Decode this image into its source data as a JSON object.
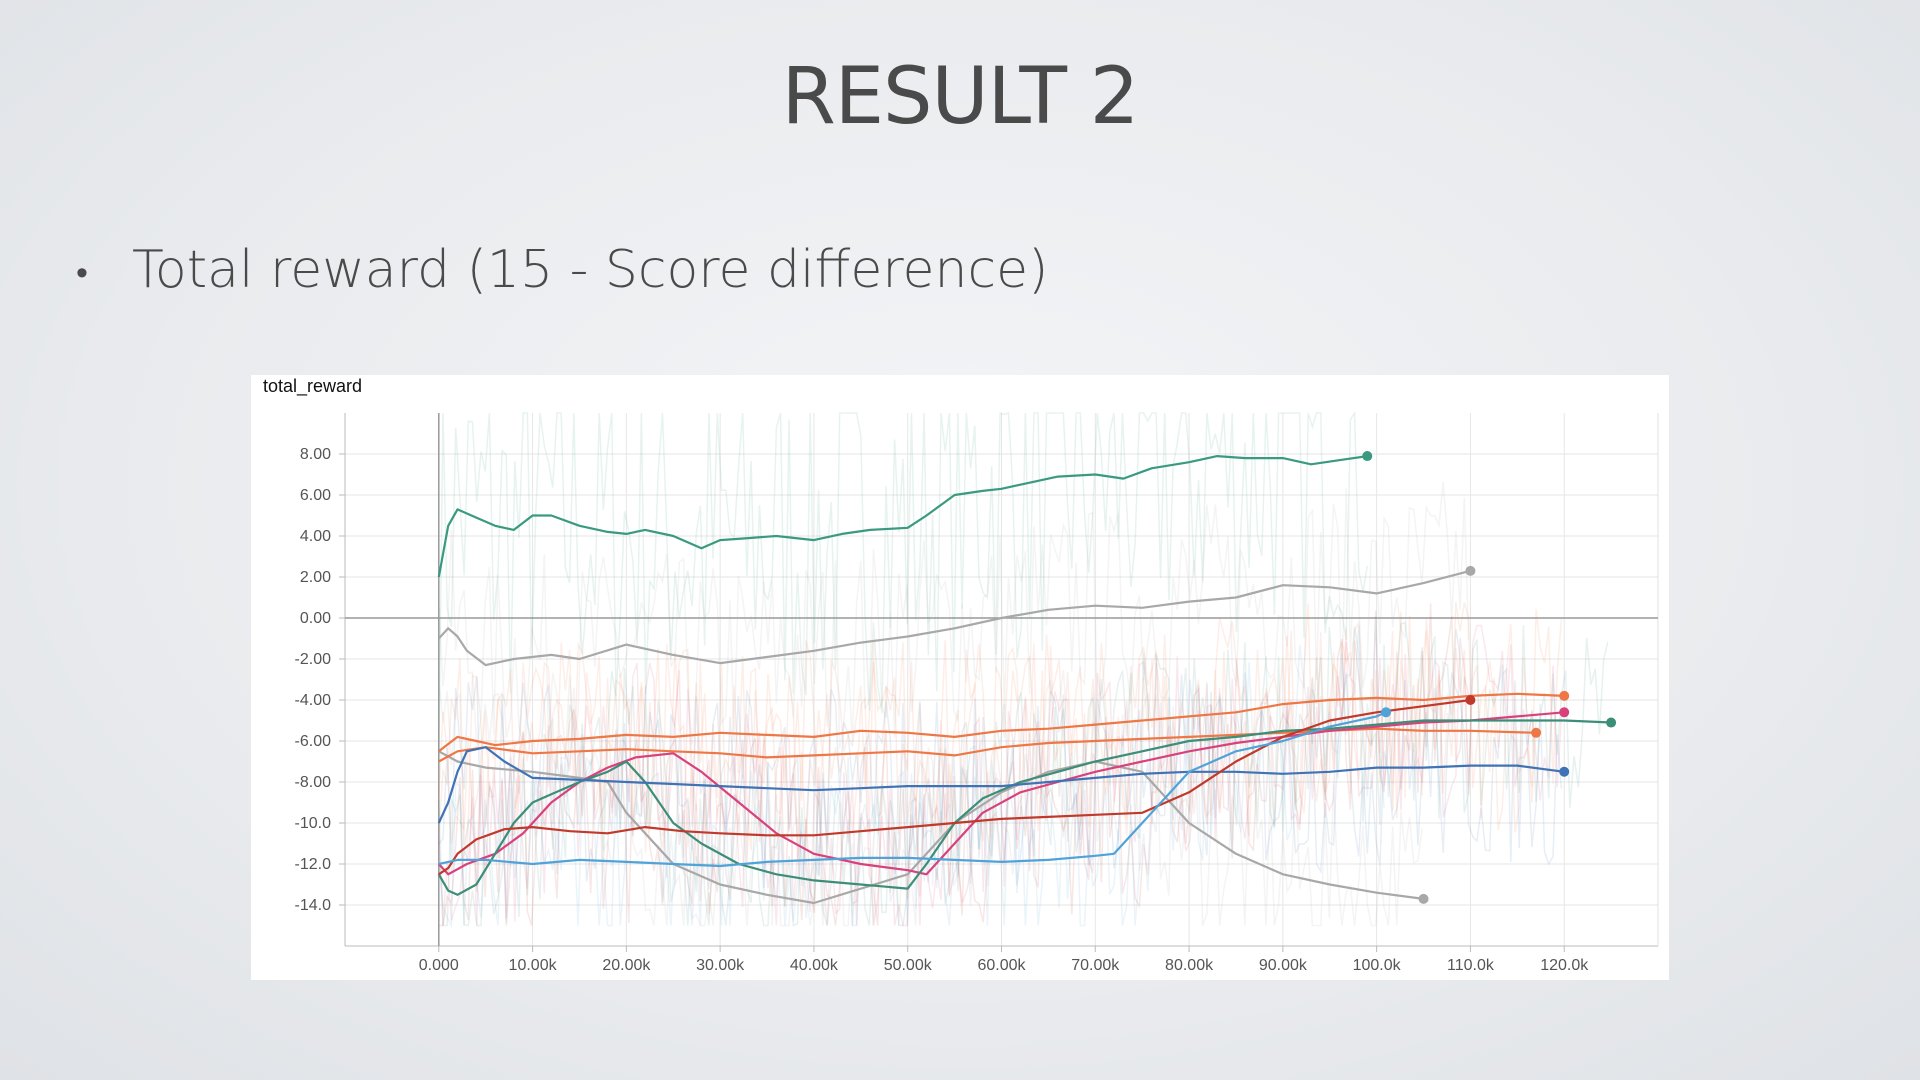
{
  "slide": {
    "title": "RESULT 2",
    "bullet": "Total reward (15 - Score difference)"
  },
  "chart_data": {
    "type": "line",
    "title": "total_reward",
    "xlabel": "",
    "ylabel": "",
    "xlim": [
      -10000,
      130000
    ],
    "ylim": [
      -16,
      10
    ],
    "grid": true,
    "x_ticks": [
      "0.000",
      "10.00k",
      "20.00k",
      "30.00k",
      "40.00k",
      "50.00k",
      "60.00k",
      "70.00k",
      "80.00k",
      "90.00k",
      "100.0k",
      "110.0k",
      "120.0k"
    ],
    "y_ticks": [
      "8.00",
      "6.00",
      "4.00",
      "2.00",
      "0.00",
      "-2.00",
      "-4.00",
      "-6.00",
      "-8.00",
      "-10.0",
      "-12.0",
      "-14.0"
    ],
    "series": [
      {
        "color": "#3a9a7f",
        "x": [
          0,
          1000,
          2000,
          4000,
          6000,
          8000,
          10000,
          12000,
          15000,
          18000,
          20000,
          22000,
          25000,
          28000,
          30000,
          33000,
          36000,
          40000,
          43000,
          46000,
          50000,
          52000,
          55000,
          58000,
          60000,
          63000,
          66000,
          70000,
          73000,
          76000,
          80000,
          83000,
          86000,
          90000,
          93000,
          96000,
          99000
        ],
        "y": [
          2.0,
          4.5,
          5.3,
          4.9,
          4.5,
          4.3,
          5.0,
          5.0,
          4.5,
          4.2,
          4.1,
          4.3,
          4.0,
          3.4,
          3.8,
          3.9,
          4.0,
          3.8,
          4.1,
          4.3,
          4.4,
          5.0,
          6.0,
          6.2,
          6.3,
          6.6,
          6.9,
          7.0,
          6.8,
          7.3,
          7.6,
          7.9,
          7.8,
          7.8,
          7.5,
          7.7,
          7.9
        ]
      },
      {
        "color": "#a8a8a8",
        "x": [
          0,
          1000,
          2000,
          3000,
          5000,
          8000,
          12000,
          15000,
          20000,
          25000,
          30000,
          35000,
          40000,
          45000,
          50000,
          55000,
          60000,
          65000,
          70000,
          75000,
          80000,
          85000,
          90000,
          95000,
          100000,
          105000,
          110000
        ],
        "y": [
          -1.0,
          -0.5,
          -0.9,
          -1.6,
          -2.3,
          -2.0,
          -1.8,
          -2.0,
          -1.3,
          -1.8,
          -2.2,
          -1.9,
          -1.6,
          -1.2,
          -0.9,
          -0.5,
          0.0,
          0.4,
          0.6,
          0.5,
          0.8,
          1.0,
          1.6,
          1.5,
          1.2,
          1.7,
          2.3
        ]
      },
      {
        "color": "#a8a8a8",
        "x": [
          0,
          2000,
          5000,
          10000,
          15000,
          18000,
          20000,
          25000,
          30000,
          35000,
          40000,
          50000,
          55000,
          60000,
          65000,
          70000,
          75000,
          80000,
          85000,
          90000,
          95000,
          100000,
          105000
        ],
        "y": [
          -6.5,
          -7.0,
          -7.3,
          -7.5,
          -7.8,
          -8.0,
          -9.5,
          -12.0,
          -13.0,
          -13.5,
          -13.9,
          -12.5,
          -10.0,
          -8.5,
          -7.5,
          -7.0,
          -7.5,
          -10.0,
          -11.5,
          -12.5,
          -13.0,
          -13.4,
          -13.7
        ]
      },
      {
        "color": "#ee7745",
        "x": [
          0,
          2000,
          4000,
          6000,
          10000,
          15000,
          20000,
          25000,
          30000,
          35000,
          40000,
          45000,
          50000,
          55000,
          60000,
          65000,
          70000,
          75000,
          80000,
          85000,
          90000,
          95000,
          100000,
          105000,
          110000,
          115000,
          120000
        ],
        "y": [
          -6.5,
          -5.8,
          -6.0,
          -6.2,
          -6.0,
          -5.9,
          -5.7,
          -5.8,
          -5.6,
          -5.7,
          -5.8,
          -5.5,
          -5.6,
          -5.8,
          -5.5,
          -5.4,
          -5.2,
          -5.0,
          -4.8,
          -4.6,
          -4.2,
          -4.0,
          -3.9,
          -4.0,
          -3.8,
          -3.7,
          -3.8
        ]
      },
      {
        "color": "#ee7745",
        "x": [
          0,
          2000,
          5000,
          10000,
          15000,
          20000,
          25000,
          30000,
          35000,
          40000,
          45000,
          50000,
          55000,
          60000,
          65000,
          70000,
          75000,
          80000,
          85000,
          90000,
          95000,
          100000,
          105000,
          110000,
          117000
        ],
        "y": [
          -7.0,
          -6.5,
          -6.3,
          -6.6,
          -6.5,
          -6.4,
          -6.5,
          -6.6,
          -6.8,
          -6.7,
          -6.6,
          -6.5,
          -6.7,
          -6.3,
          -6.1,
          -6.0,
          -5.9,
          -5.8,
          -5.7,
          -5.6,
          -5.5,
          -5.4,
          -5.5,
          -5.5,
          -5.6
        ]
      },
      {
        "color": "#d9417d",
        "x": [
          0,
          1000,
          3000,
          6000,
          9000,
          12000,
          15000,
          18000,
          21000,
          25000,
          28000,
          32000,
          36000,
          40000,
          45000,
          50000,
          52000,
          55000,
          58000,
          62000,
          66000,
          70000,
          75000,
          80000,
          85000,
          90000,
          95000,
          100000,
          105000,
          110000,
          115000,
          120000
        ],
        "y": [
          -12.0,
          -12.5,
          -12.0,
          -11.5,
          -10.5,
          -9.0,
          -8.0,
          -7.3,
          -6.8,
          -6.6,
          -7.5,
          -9.0,
          -10.5,
          -11.5,
          -12.0,
          -12.3,
          -12.5,
          -11.0,
          -9.5,
          -8.5,
          -8.0,
          -7.5,
          -7.0,
          -6.5,
          -6.1,
          -5.8,
          -5.5,
          -5.3,
          -5.1,
          -5.0,
          -4.8,
          -4.6
        ]
      },
      {
        "color": "#3c8e78",
        "x": [
          0,
          1000,
          2000,
          4000,
          6000,
          8000,
          10000,
          12000,
          15000,
          18000,
          20000,
          22000,
          25000,
          28000,
          32000,
          36000,
          40000,
          45000,
          50000,
          52000,
          55000,
          58000,
          62000,
          66000,
          70000,
          75000,
          80000,
          85000,
          90000,
          95000,
          100000,
          105000,
          110000,
          115000,
          120000,
          125000
        ],
        "y": [
          -12.5,
          -13.3,
          -13.5,
          -13.0,
          -11.5,
          -10.0,
          -9.0,
          -8.6,
          -8.0,
          -7.5,
          -7.0,
          -8.0,
          -10.0,
          -11.0,
          -12.0,
          -12.5,
          -12.8,
          -13.0,
          -13.2,
          -12.0,
          -10.0,
          -8.8,
          -8.0,
          -7.5,
          -7.0,
          -6.5,
          -6.0,
          -5.8,
          -5.5,
          -5.4,
          -5.2,
          -5.0,
          -5.0,
          -5.0,
          -5.0,
          -5.1
        ]
      },
      {
        "color": "#3f73b5",
        "x": [
          0,
          1000,
          2000,
          3000,
          5000,
          7000,
          10000,
          15000,
          20000,
          25000,
          30000,
          35000,
          40000,
          45000,
          50000,
          55000,
          60000,
          65000,
          70000,
          75000,
          80000,
          85000,
          90000,
          95000,
          100000,
          105000,
          110000,
          115000,
          120000
        ],
        "y": [
          -10.0,
          -9.0,
          -7.5,
          -6.5,
          -6.3,
          -7.0,
          -7.8,
          -7.9,
          -8.0,
          -8.1,
          -8.2,
          -8.3,
          -8.4,
          -8.3,
          -8.2,
          -8.2,
          -8.2,
          -8.0,
          -7.8,
          -7.6,
          -7.5,
          -7.5,
          -7.6,
          -7.5,
          -7.3,
          -7.3,
          -7.2,
          -7.2,
          -7.5
        ]
      },
      {
        "color": "#c0392b",
        "x": [
          0,
          1000,
          2000,
          4000,
          7000,
          10000,
          14000,
          18000,
          22000,
          26000,
          30000,
          35000,
          40000,
          45000,
          50000,
          55000,
          60000,
          65000,
          70000,
          75000,
          80000,
          85000,
          90000,
          95000,
          100000,
          105000,
          110000
        ],
        "y": [
          -12.5,
          -12.2,
          -11.5,
          -10.8,
          -10.3,
          -10.2,
          -10.4,
          -10.5,
          -10.2,
          -10.4,
          -10.5,
          -10.6,
          -10.6,
          -10.4,
          -10.2,
          -10.0,
          -9.8,
          -9.7,
          -9.6,
          -9.5,
          -8.5,
          -7.0,
          -5.8,
          -5.0,
          -4.6,
          -4.3,
          -4.0
        ]
      },
      {
        "color": "#4fa3d9",
        "x": [
          0,
          2000,
          5000,
          10000,
          15000,
          20000,
          25000,
          30000,
          35000,
          40000,
          45000,
          50000,
          55000,
          60000,
          65000,
          70000,
          72000,
          75000,
          80000,
          85000,
          90000,
          95000,
          100000,
          101000
        ],
        "y": [
          -12.0,
          -11.8,
          -11.8,
          -12.0,
          -11.8,
          -11.9,
          -12.0,
          -12.1,
          -11.9,
          -11.8,
          -11.7,
          -11.7,
          -11.8,
          -11.9,
          -11.8,
          -11.6,
          -11.5,
          -10.0,
          -7.5,
          -6.5,
          -6.0,
          -5.3,
          -4.8,
          -4.6
        ]
      }
    ]
  }
}
